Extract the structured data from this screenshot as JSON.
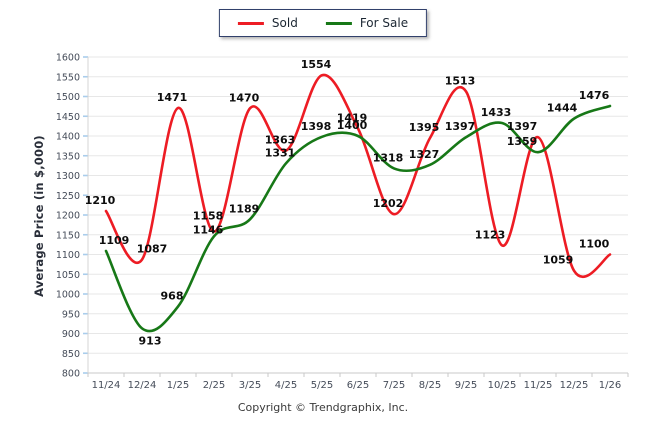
{
  "chart_data": {
    "type": "line",
    "title": "",
    "x_categories": [
      "11/24",
      "12/24",
      "1/25",
      "2/25",
      "3/25",
      "4/25",
      "5/25",
      "6/25",
      "7/25",
      "8/25",
      "9/25",
      "10/25",
      "11/25",
      "12/25",
      "1/26"
    ],
    "series": [
      {
        "name": "Sold",
        "color": "#ed1c24",
        "values": [
          1210,
          1087,
          1471,
          1158,
          1470,
          1363,
          1554,
          1419,
          1202,
          1395,
          1513,
          1123,
          1397,
          1059,
          1100
        ]
      },
      {
        "name": "For Sale",
        "color": "#177817",
        "values": [
          1109,
          913,
          968,
          1146,
          1189,
          1331,
          1398,
          1400,
          1318,
          1327,
          1397,
          1433,
          1359,
          1444,
          1476
        ]
      }
    ],
    "ylabel": "Average Price (in $,000)",
    "xlabel": "",
    "ylim": [
      800,
      1600
    ],
    "ytick_step": 50,
    "grid": true,
    "legend_position": "top-center",
    "grid_color": "#e7e7e7",
    "axis_color": "#c9c9c9",
    "y_tick_mark_color": "#a9cdec",
    "tick_label_color": "#454c59",
    "data_label_color": "#0d0d0d"
  },
  "footer": {
    "copyright": "Copyright © Trendgraphix, Inc."
  }
}
